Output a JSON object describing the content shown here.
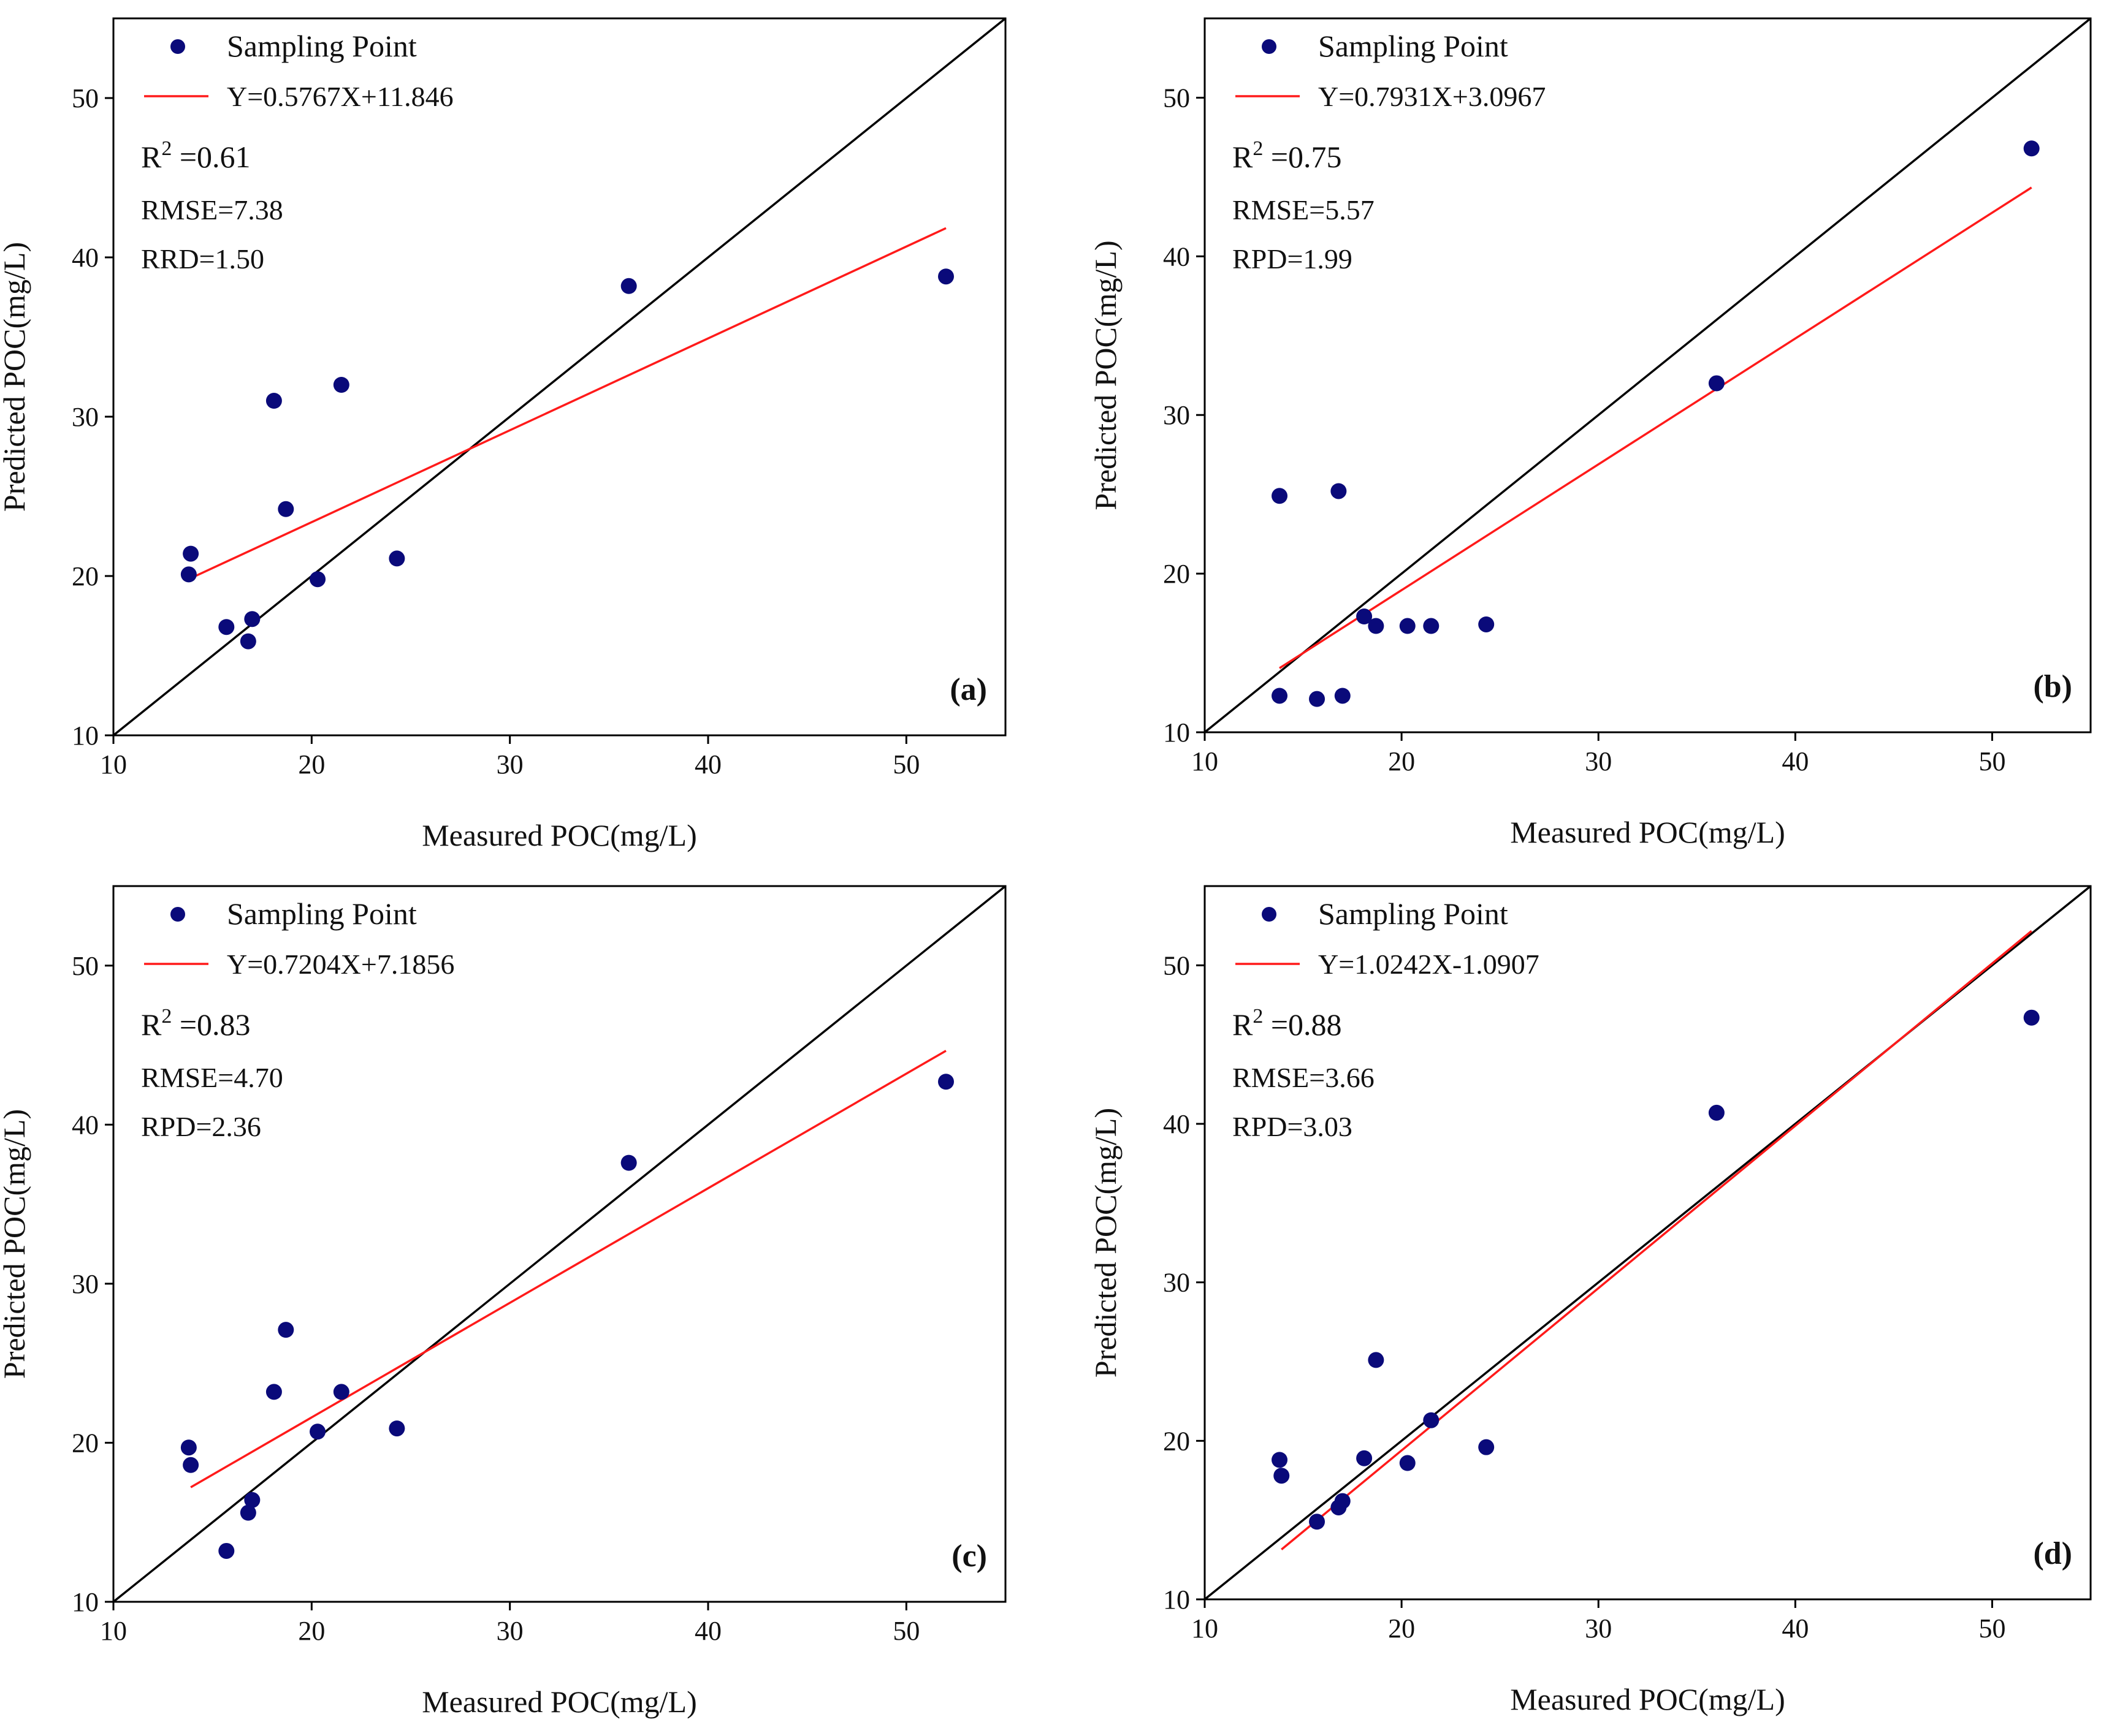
{
  "colors": {
    "point": "#0a0a7a",
    "fit_line": "#ff1a1a",
    "identity_line": "#000000",
    "axes": "#000000"
  },
  "chart_data": [
    {
      "type": "scatter",
      "panel_label": "(a)",
      "xlabel": "Measured POC(mg/L)",
      "ylabel": "Predicted POC(mg/L)",
      "xlim": [
        10,
        55
      ],
      "ylim": [
        10,
        55
      ],
      "x_ticks": [
        10,
        20,
        30,
        40,
        50
      ],
      "y_ticks": [
        10,
        20,
        30,
        40,
        50
      ],
      "legend": {
        "points_label": "Sampling Point",
        "fit_label": "Y=0.5767X+11.846",
        "placement": "top-left"
      },
      "stats": {
        "r2_label": "R",
        "r2_sup": "2",
        "r2_value": " =0.61",
        "rmse": "RMSE=7.38",
        "extra": "RRD=1.50"
      },
      "fit": {
        "slope": 0.5767,
        "intercept": 11.846,
        "x_range": [
          13.9,
          52
        ]
      },
      "points": [
        {
          "x": 13.8,
          "y": 20.1
        },
        {
          "x": 13.9,
          "y": 21.4
        },
        {
          "x": 15.7,
          "y": 16.8
        },
        {
          "x": 16.8,
          "y": 15.9
        },
        {
          "x": 17.0,
          "y": 17.3
        },
        {
          "x": 18.1,
          "y": 31.0
        },
        {
          "x": 18.7,
          "y": 24.2
        },
        {
          "x": 20.3,
          "y": 19.8
        },
        {
          "x": 21.5,
          "y": 32.0
        },
        {
          "x": 24.3,
          "y": 21.1
        },
        {
          "x": 36.0,
          "y": 38.2
        },
        {
          "x": 52.0,
          "y": 38.8
        }
      ]
    },
    {
      "type": "scatter",
      "panel_label": "(b)",
      "xlabel": "Measured POC(mg/L)",
      "ylabel": "Predicted POC(mg/L)",
      "xlim": [
        10,
        55
      ],
      "ylim": [
        10,
        55
      ],
      "x_ticks": [
        10,
        20,
        30,
        40,
        50
      ],
      "y_ticks": [
        10,
        20,
        30,
        40,
        50
      ],
      "legend": {
        "points_label": "Sampling Point",
        "fit_label": "Y=0.7931X+3.0967",
        "placement": "top-left"
      },
      "stats": {
        "r2_label": "R",
        "r2_sup": "2",
        "r2_value": " =0.75",
        "rmse": "RMSE=5.57",
        "extra": "RPD=1.99"
      },
      "fit": {
        "slope": 0.7931,
        "intercept": 3.0967,
        "x_range": [
          13.8,
          52
        ]
      },
      "points": [
        {
          "x": 13.8,
          "y": 24.9
        },
        {
          "x": 13.8,
          "y": 12.3
        },
        {
          "x": 15.7,
          "y": 12.1
        },
        {
          "x": 16.8,
          "y": 25.2
        },
        {
          "x": 17.0,
          "y": 12.3
        },
        {
          "x": 18.1,
          "y": 17.3
        },
        {
          "x": 18.7,
          "y": 16.7
        },
        {
          "x": 20.3,
          "y": 16.7
        },
        {
          "x": 21.5,
          "y": 16.7
        },
        {
          "x": 24.3,
          "y": 16.8
        },
        {
          "x": 36.0,
          "y": 32.0
        },
        {
          "x": 52.0,
          "y": 46.8
        }
      ]
    },
    {
      "type": "scatter",
      "panel_label": "(c)",
      "xlabel": "Measured POC(mg/L)",
      "ylabel": "Predicted POC(mg/L)",
      "xlim": [
        10,
        55
      ],
      "ylim": [
        10,
        55
      ],
      "x_ticks": [
        10,
        20,
        30,
        40,
        50
      ],
      "y_ticks": [
        10,
        20,
        30,
        40,
        50
      ],
      "legend": {
        "points_label": "Sampling Point",
        "fit_label": "Y=0.7204X+7.1856",
        "placement": "top-left"
      },
      "stats": {
        "r2_label": "R",
        "r2_sup": "2",
        "r2_value": " =0.83",
        "rmse": "RMSE=4.70",
        "extra": "RPD=2.36"
      },
      "fit": {
        "slope": 0.7204,
        "intercept": 7.1856,
        "x_range": [
          13.9,
          52
        ]
      },
      "points": [
        {
          "x": 13.8,
          "y": 19.7
        },
        {
          "x": 13.9,
          "y": 18.6
        },
        {
          "x": 15.7,
          "y": 13.2
        },
        {
          "x": 16.8,
          "y": 15.6
        },
        {
          "x": 17.0,
          "y": 16.4
        },
        {
          "x": 18.1,
          "y": 23.2
        },
        {
          "x": 18.7,
          "y": 27.1
        },
        {
          "x": 20.3,
          "y": 20.7
        },
        {
          "x": 21.5,
          "y": 23.2
        },
        {
          "x": 24.3,
          "y": 20.9
        },
        {
          "x": 36.0,
          "y": 37.6
        },
        {
          "x": 52.0,
          "y": 42.7
        }
      ]
    },
    {
      "type": "scatter",
      "panel_label": "(d)",
      "xlabel": "Measured POC(mg/L)",
      "ylabel": "Predicted POC(mg/L)",
      "xlim": [
        10,
        55
      ],
      "ylim": [
        10,
        55
      ],
      "x_ticks": [
        10,
        20,
        30,
        40,
        50
      ],
      "y_ticks": [
        10,
        20,
        30,
        40,
        50
      ],
      "legend": {
        "points_label": "Sampling Point",
        "fit_label": "Y=1.0242X-1.0907",
        "placement": "top-left"
      },
      "stats": {
        "r2_label": "R",
        "r2_sup": "2",
        "r2_value": " =0.88",
        "rmse": "RMSE=3.66",
        "extra": "RPD=3.03"
      },
      "fit": {
        "slope": 1.0242,
        "intercept": -1.0907,
        "x_range": [
          13.9,
          52
        ]
      },
      "points": [
        {
          "x": 13.8,
          "y": 18.8
        },
        {
          "x": 13.9,
          "y": 17.8
        },
        {
          "x": 15.7,
          "y": 14.9
        },
        {
          "x": 16.8,
          "y": 15.8
        },
        {
          "x": 17.0,
          "y": 16.2
        },
        {
          "x": 18.1,
          "y": 18.9
        },
        {
          "x": 18.7,
          "y": 25.1
        },
        {
          "x": 20.3,
          "y": 18.6
        },
        {
          "x": 21.5,
          "y": 21.3
        },
        {
          "x": 24.3,
          "y": 19.6
        },
        {
          "x": 36.0,
          "y": 40.7
        },
        {
          "x": 52.0,
          "y": 46.7
        }
      ]
    }
  ]
}
